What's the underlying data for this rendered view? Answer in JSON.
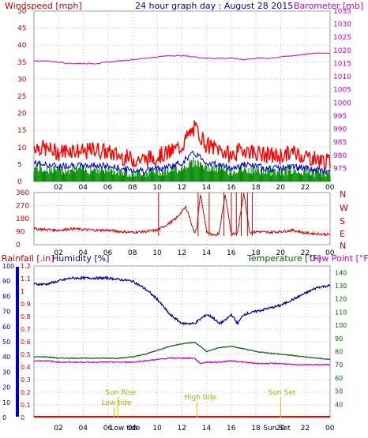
{
  "header": {
    "wind_title": "Windspeed [mph]",
    "date_title": "24 hour graph day : August 28 2015",
    "baro_title": "Barometer [mb]"
  },
  "x_ticks": [
    "02",
    "04",
    "06",
    "08",
    "10",
    "12",
    "14",
    "16",
    "18",
    "20",
    "22",
    "00"
  ],
  "colors": {
    "wind": "#ff0000",
    "gust": "#ff0000",
    "avg_wind": "#0000cc",
    "wind_green": "#008800",
    "barometer": "#cc00cc",
    "direction": "#cc0000",
    "humidity": "#000099",
    "temperature": "#006600",
    "dewpoint": "#cc00cc",
    "rain": "#ff0000",
    "astro": "#cccc00"
  },
  "chart_data": [
    {
      "type": "line",
      "name": "wind-barometer",
      "left_axis": {
        "label": "Windspeed [mph]",
        "ylim": [
          0,
          50
        ],
        "ticks": [
          0,
          5,
          10,
          15,
          20,
          25,
          30,
          35,
          40,
          45,
          50
        ]
      },
      "right_axis": {
        "label": "Barometer [mb]",
        "ylim": [
          970,
          1035
        ],
        "ticks": [
          975,
          980,
          985,
          990,
          995,
          1000,
          1005,
          1010,
          1015,
          1020,
          1025,
          1030,
          1035
        ]
      },
      "series": [
        {
          "name": "Windspeed [mph]",
          "axis": "left",
          "x": [
            0,
            1,
            2,
            3,
            4,
            5,
            6,
            7,
            8,
            9,
            10,
            11,
            12,
            12.5,
            13,
            13.5,
            14,
            15,
            16,
            17,
            18,
            19,
            20,
            21,
            22,
            23,
            24
          ],
          "y": [
            10,
            9,
            8,
            9,
            8,
            9,
            8,
            7,
            6,
            6,
            7,
            8,
            10,
            13,
            15,
            13,
            10,
            9,
            7,
            9,
            8,
            7,
            7,
            8,
            7,
            6,
            5
          ]
        },
        {
          "name": "Barometer [mb]",
          "axis": "right",
          "x": [
            0,
            1,
            2,
            3,
            4,
            5,
            6,
            7,
            8,
            9,
            10,
            11,
            12,
            13,
            14,
            15,
            16,
            17,
            18,
            19,
            20,
            21,
            22,
            23,
            24
          ],
          "y": [
            1016,
            1016,
            1015.5,
            1015,
            1015,
            1015,
            1015.5,
            1016,
            1016.5,
            1017,
            1017.5,
            1018,
            1018,
            1017.5,
            1017,
            1017,
            1017,
            1016.5,
            1017,
            1017,
            1017.5,
            1018,
            1018.5,
            1019,
            1019
          ]
        }
      ]
    },
    {
      "type": "line",
      "name": "wind-direction",
      "left_axis": {
        "ylim": [
          0,
          360
        ],
        "ticks": [
          0,
          90,
          180,
          270,
          360
        ]
      },
      "right_axis": {
        "labels": [
          "N",
          "W",
          "S",
          "E",
          "N"
        ]
      },
      "series": [
        {
          "name": "direction",
          "x": [
            0,
            1,
            2,
            3,
            4,
            5,
            6,
            7,
            8,
            9,
            10,
            11,
            11.5,
            12,
            12.3,
            12.5,
            13,
            13.2,
            13.5,
            14,
            14.5,
            15,
            15.5,
            16,
            16.5,
            17,
            17.5,
            18,
            19,
            20,
            21,
            22,
            23,
            24
          ],
          "y": [
            110,
            105,
            100,
            110,
            105,
            100,
            100,
            90,
            85,
            90,
            100,
            150,
            180,
            230,
            260,
            220,
            80,
            120,
            350,
            90,
            60,
            80,
            350,
            70,
            80,
            360,
            80,
            90,
            85,
            90,
            100,
            80,
            75,
            70
          ]
        }
      ]
    },
    {
      "type": "line",
      "name": "rain-humidity-temp",
      "left_axis": {
        "label": "Rainfall [.in]",
        "ylim": [
          0,
          1.2
        ],
        "ticks": [
          0,
          0.1,
          0.2,
          0.3,
          0.4,
          0.5,
          0.6,
          0.7,
          0.8,
          0.9,
          1,
          1.1,
          1.2
        ]
      },
      "left_axis2": {
        "label": "Humidity [%]",
        "ylim": [
          0,
          100
        ],
        "ticks": [
          0,
          10,
          20,
          30,
          40,
          50,
          60,
          70,
          80,
          90,
          100
        ]
      },
      "right_axis": {
        "label": "Temperature [°F]",
        "label2": "Dew Point [°F]",
        "ylim": [
          30,
          145
        ],
        "ticks": [
          40,
          50,
          60,
          70,
          80,
          90,
          100,
          110,
          120,
          130,
          140
        ]
      },
      "series": [
        {
          "name": "Humidity [%]",
          "axis": "left2",
          "x": [
            0,
            1,
            2,
            3,
            4,
            5,
            6,
            7,
            8,
            9,
            10,
            11,
            12,
            13,
            13.5,
            14,
            14.5,
            15,
            15.5,
            16,
            16.5,
            17,
            18,
            19,
            20,
            21,
            22,
            23,
            24
          ],
          "y": [
            88,
            88,
            90,
            92,
            92,
            92,
            92,
            91,
            90,
            85,
            78,
            68,
            62,
            62,
            65,
            68,
            66,
            62,
            64,
            68,
            62,
            68,
            70,
            72,
            74,
            78,
            82,
            86,
            87
          ]
        },
        {
          "name": "Temperature [°F]",
          "axis": "right",
          "x": [
            0,
            1,
            2,
            3,
            4,
            5,
            6,
            7,
            8,
            9,
            10,
            11,
            12,
            13,
            13.5,
            14,
            15,
            16,
            17,
            18,
            19,
            20,
            21,
            22,
            23,
            24
          ],
          "y": [
            76,
            76,
            75,
            75,
            75,
            75,
            75,
            75,
            76,
            78,
            81,
            84,
            86,
            87,
            84,
            80,
            83,
            84,
            82,
            80,
            79,
            78,
            77,
            76,
            75,
            74
          ]
        },
        {
          "name": "Dew Point [°F]",
          "axis": "right",
          "x": [
            0,
            1,
            2,
            3,
            4,
            5,
            6,
            7,
            8,
            9,
            10,
            11,
            12,
            13,
            13.5,
            14,
            15,
            16,
            17,
            18,
            19,
            20,
            21,
            22,
            23,
            24
          ],
          "y": [
            73,
            73,
            72,
            72,
            72,
            72,
            72,
            72,
            72,
            73,
            74,
            75,
            75,
            75,
            71,
            72,
            72,
            73,
            72,
            71,
            71,
            71,
            70,
            70,
            70,
            70
          ]
        },
        {
          "name": "Rainfall [.in]",
          "axis": "left",
          "x": [
            0,
            24
          ],
          "y": [
            0,
            0
          ]
        }
      ],
      "annotations": [
        {
          "text": "Low tide",
          "hour": 6.5,
          "level": "low"
        },
        {
          "text": "Sun Rise",
          "hour": 6.8,
          "level": "high"
        },
        {
          "text": "Low tide",
          "hour": 7.2,
          "level": "bottom"
        },
        {
          "text": "High tide",
          "hour": 13.2,
          "level": "mid"
        },
        {
          "text": "Sun Set",
          "hour": 20.0,
          "level": "high"
        },
        {
          "text": "Sun Set",
          "hour": 19.6,
          "level": "bottom"
        }
      ]
    }
  ]
}
